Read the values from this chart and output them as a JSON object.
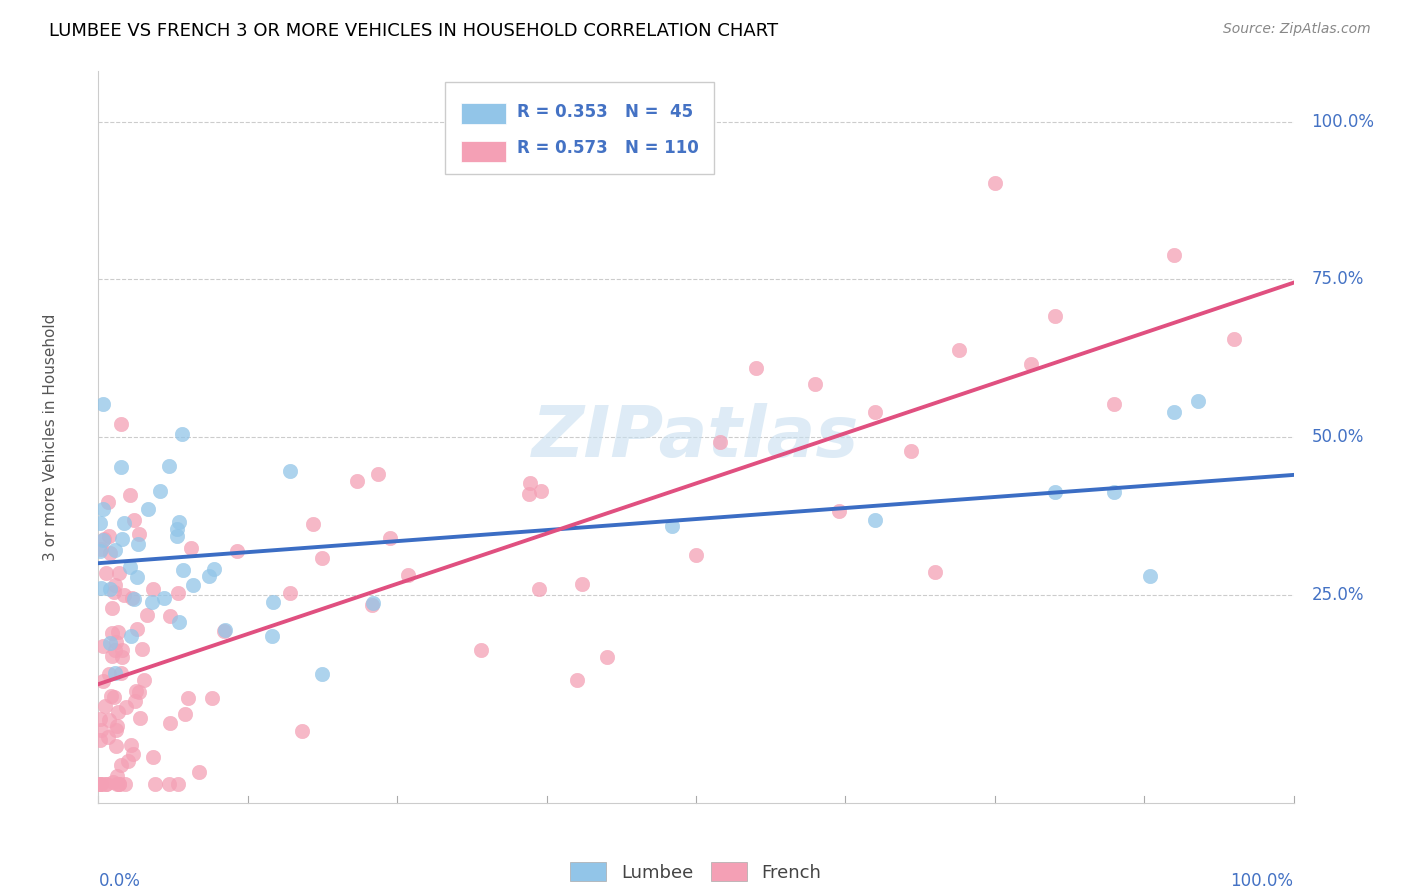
{
  "title": "LUMBEE VS FRENCH 3 OR MORE VEHICLES IN HOUSEHOLD CORRELATION CHART",
  "source": "Source: ZipAtlas.com",
  "ylabel": "3 or more Vehicles in Household",
  "lumbee_R": 0.353,
  "lumbee_N": 45,
  "french_R": 0.573,
  "french_N": 110,
  "lumbee_color": "#92C5E8",
  "french_color": "#F4A0B5",
  "lumbee_line_color": "#3B6DC4",
  "french_line_color": "#E05080",
  "blue_label_color": "#4472C4",
  "watermark_color": "#C8DFF0",
  "ytick_labels": [
    "25.0%",
    "50.0%",
    "75.0%",
    "100.0%"
  ],
  "ytick_values": [
    0.25,
    0.5,
    0.75,
    1.0
  ],
  "lumbee_seed": 42,
  "french_seed": 7
}
